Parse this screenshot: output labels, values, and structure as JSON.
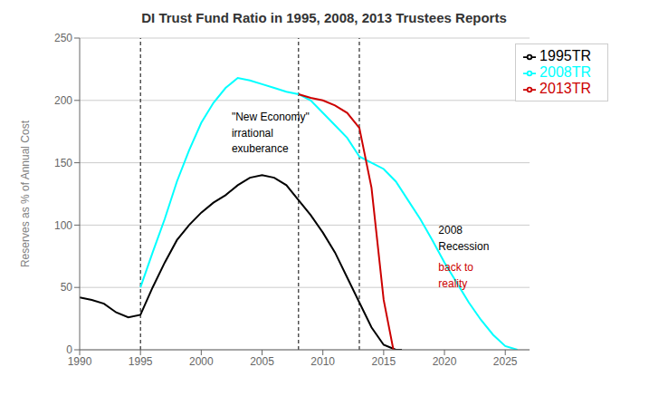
{
  "chart_data": {
    "type": "line",
    "title": "DI Trust Fund Ratio in 1995, 2008, 2013 Trustees Reports",
    "ylabel": "Reserves as % of Annual Cost",
    "xlim": [
      1990,
      2027
    ],
    "ylim": [
      0,
      250
    ],
    "xticks": [
      1990,
      1995,
      2000,
      2005,
      2010,
      2015,
      2020,
      2025
    ],
    "yticks": [
      0,
      50,
      100,
      150,
      200,
      250
    ],
    "grid": true,
    "legend": "upper right",
    "vlines": [
      1995,
      2008,
      2013
    ],
    "series": [
      {
        "name": "1995TR",
        "color": "#000000",
        "x": [
          1990,
          1991,
          1992,
          1993,
          1994,
          1995,
          1996,
          1997,
          1998,
          1999,
          2000,
          2001,
          2002,
          2003,
          2004,
          2005,
          2006,
          2007,
          2008,
          2009,
          2010,
          2011,
          2012,
          2013,
          2014,
          2015,
          2016,
          2016.5
        ],
        "values": [
          42,
          40,
          37,
          30,
          26,
          28,
          50,
          70,
          88,
          100,
          110,
          118,
          124,
          132,
          138,
          140,
          138,
          132,
          120,
          108,
          94,
          78,
          58,
          38,
          18,
          4,
          0,
          0
        ]
      },
      {
        "name": "2008TR",
        "color": "#00FFFF",
        "x": [
          1995,
          1996,
          1997,
          1998,
          1999,
          2000,
          2001,
          2002,
          2003,
          2004,
          2005,
          2006,
          2007,
          2008,
          2009,
          2010,
          2011,
          2012,
          2013,
          2014,
          2015,
          2016,
          2017,
          2018,
          2019,
          2020,
          2021,
          2022,
          2023,
          2024,
          2025,
          2026
        ],
        "values": [
          50,
          78,
          105,
          135,
          160,
          182,
          198,
          210,
          218,
          216,
          213,
          210,
          207,
          205,
          200,
          190,
          180,
          170,
          155,
          150,
          145,
          135,
          120,
          105,
          88,
          70,
          54,
          38,
          24,
          12,
          3,
          0
        ]
      },
      {
        "name": "2013TR",
        "color": "#CC0000",
        "x": [
          2008,
          2009,
          2010,
          2011,
          2012,
          2013,
          2014,
          2015,
          2015.8
        ],
        "values": [
          205,
          202,
          200,
          196,
          190,
          178,
          130,
          40,
          0
        ]
      }
    ],
    "annotations": [
      {
        "text": "\"New Economy\"",
        "x": 2002.5,
        "y": 187,
        "color": "#000000"
      },
      {
        "text": "irrational",
        "x": 2002.5,
        "y": 174,
        "color": "#000000"
      },
      {
        "text": "exuberance",
        "x": 2002.5,
        "y": 161,
        "color": "#000000"
      },
      {
        "text": "2008",
        "x": 2019.5,
        "y": 96,
        "color": "#000000"
      },
      {
        "text": "Recession",
        "x": 2019.5,
        "y": 83,
        "color": "#000000"
      },
      {
        "text": "back to",
        "x": 2019.5,
        "y": 66,
        "color": "#CC0000"
      },
      {
        "text": "reality",
        "x": 2019.5,
        "y": 53,
        "color": "#CC0000"
      }
    ]
  }
}
